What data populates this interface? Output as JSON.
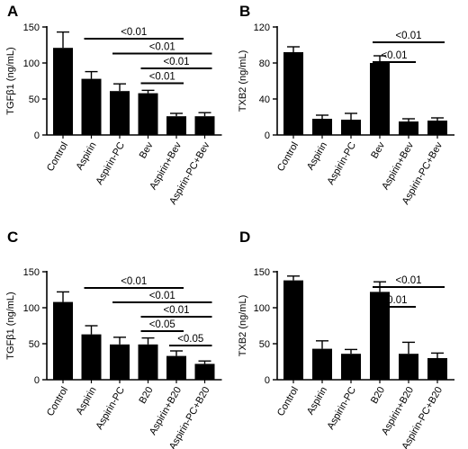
{
  "chart_data": [
    {
      "panel": "A",
      "type": "bar",
      "ylabel": "TGFβ1 (ng/mL)",
      "ylim": [
        0,
        150
      ],
      "yticks": [
        "0",
        "50",
        "100",
        "150"
      ],
      "categories": [
        "Control",
        "Aspirin",
        "Aspirin-PC",
        "Bev",
        "Aspirin+Bev",
        "Aspirin-PC+Bev"
      ],
      "values": [
        121,
        78,
        61,
        58,
        26,
        26
      ],
      "errors": [
        22,
        10,
        10,
        4,
        4,
        5
      ],
      "comparisons": [
        {
          "from": 1,
          "to": 4,
          "label": "<0.01"
        },
        {
          "from": 2,
          "to": 5,
          "label": "<0.01"
        },
        {
          "from": 3,
          "to": 5,
          "label": "<0.01"
        },
        {
          "from": 3,
          "to": 4,
          "label": "<0.01"
        }
      ]
    },
    {
      "panel": "B",
      "type": "bar",
      "ylabel": "TXB2 (ng/mL)",
      "ylim": [
        0,
        120
      ],
      "yticks": [
        "0",
        "40",
        "80",
        "120"
      ],
      "categories": [
        "Control",
        "Aspirin",
        "Aspirin-PC",
        "Bev",
        "Aspirin+Bev",
        "Aspirin-PC+Bev"
      ],
      "values": [
        92,
        18,
        17,
        80,
        15,
        16
      ],
      "errors": [
        6,
        4,
        7,
        8,
        3,
        3
      ],
      "comparisons": [
        {
          "from": 3,
          "to": 5,
          "label": "<0.01"
        },
        {
          "from": 3,
          "to": 4,
          "label": "<0.01"
        }
      ]
    },
    {
      "panel": "C",
      "type": "bar",
      "ylabel": "TGFβ1 (ng/mL)",
      "ylim": [
        0,
        150
      ],
      "yticks": [
        "0",
        "50",
        "100",
        "150"
      ],
      "categories": [
        "Control",
        "Aspirin",
        "Aspirin-PC",
        "B20",
        "Aspirin+B20",
        "Aspirin-PC+B20"
      ],
      "values": [
        108,
        63,
        49,
        49,
        33,
        22
      ],
      "errors": [
        14,
        12,
        10,
        9,
        7,
        4
      ],
      "comparisons": [
        {
          "from": 1,
          "to": 4,
          "label": "<0.01"
        },
        {
          "from": 2,
          "to": 5,
          "label": "<0.01"
        },
        {
          "from": 3,
          "to": 5,
          "label": "<0.01"
        },
        {
          "from": 3,
          "to": 4,
          "label": "<0.05"
        },
        {
          "from": 4,
          "to": 5,
          "label": "<0.05"
        }
      ]
    },
    {
      "panel": "D",
      "type": "bar",
      "ylabel": "TXB2 (ng/mL)",
      "ylim": [
        0,
        150
      ],
      "yticks": [
        "0",
        "50",
        "100",
        "150"
      ],
      "categories": [
        "Control",
        "Aspirin",
        "Aspirin-PC",
        "B20",
        "Aspirin+B20",
        "Aspirin-PC+B20"
      ],
      "values": [
        138,
        43,
        36,
        122,
        36,
        30
      ],
      "errors": [
        6,
        11,
        6,
        14,
        16,
        7
      ],
      "comparisons": [
        {
          "from": 3,
          "to": 5,
          "label": "<0.01"
        },
        {
          "from": 3,
          "to": 4,
          "label": "<0.01"
        }
      ]
    }
  ]
}
